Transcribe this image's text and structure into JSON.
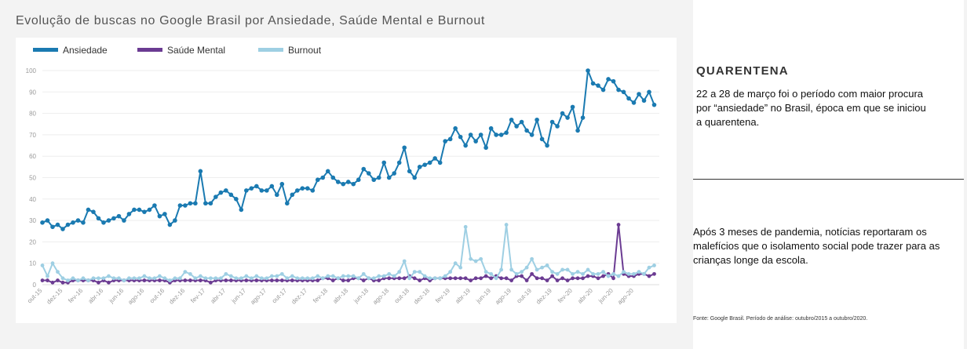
{
  "title": "Evolução de buscas no Google Brasil por Ansiedade, Saúde Mental e Burnout",
  "panel": {
    "heading": "QUARENTENA",
    "text1": "22 a 28 de março foi o período com maior procura por “ansiedade” no Brasil, época em que se iniciou a quarentena.",
    "text2": "Após 3 meses de pandemia, notícias reportaram os malefícios que o isolamento social pode trazer para as crianças longe da escola.",
    "source": "Fonte: Google Brasil. Período de análise: outubro/2015 a outubro/2020."
  },
  "chart_data": {
    "type": "line",
    "ylim": [
      0,
      100
    ],
    "yticks": [
      0,
      10,
      20,
      30,
      40,
      50,
      60,
      70,
      80,
      90,
      100
    ],
    "xlim": [
      0,
      60.5
    ],
    "xtick_labels": [
      "out-15",
      "dez-15",
      "fev-16",
      "abr-16",
      "jun-16",
      "ago-16",
      "out-16",
      "dez-16",
      "fev-17",
      "abr-17",
      "jun-17",
      "ago-17",
      "out-17",
      "dez-17",
      "fev-18",
      "abr-18",
      "jun-18",
      "ago-18",
      "out-18",
      "dez-18",
      "fev-19",
      "abr-19",
      "jun-19",
      "ago-19",
      "out-19",
      "dez-19",
      "fev-20",
      "abr-20",
      "jun-20",
      "ago-20"
    ],
    "xtick_positions": [
      0,
      2,
      4,
      6,
      8,
      10,
      12,
      14,
      16,
      18,
      20,
      22,
      24,
      26,
      28,
      30,
      32,
      34,
      36,
      38,
      40,
      42,
      44,
      46,
      48,
      50,
      52,
      54,
      56,
      58
    ],
    "legend_position": "top-left",
    "series": [
      {
        "name": "Ansiedade",
        "color": "#1a7ab1",
        "x": [
          0,
          0.5,
          1,
          1.5,
          2,
          2.5,
          3,
          3.5,
          4,
          4.5,
          5,
          5.5,
          6,
          6.5,
          7,
          7.5,
          8,
          8.5,
          9,
          9.5,
          10,
          10.5,
          11,
          11.5,
          12,
          12.5,
          13,
          13.5,
          14,
          14.5,
          15,
          15.5,
          16,
          16.5,
          17,
          17.5,
          18,
          18.5,
          19,
          19.5,
          20,
          20.5,
          21,
          21.5,
          22,
          22.5,
          23,
          23.5,
          24,
          24.5,
          25,
          25.5,
          26,
          26.5,
          27,
          27.5,
          28,
          28.5,
          29,
          29.5,
          30,
          30.5,
          31,
          31.5,
          32,
          32.5,
          33,
          33.5,
          34,
          34.5,
          35,
          35.5,
          36,
          36.5,
          37,
          37.5,
          38,
          38.5,
          39,
          39.5,
          40,
          40.5,
          41,
          41.5,
          42,
          42.5,
          43,
          43.5,
          44,
          44.5,
          45,
          45.5,
          46,
          46.5,
          47,
          47.5,
          48,
          48.5,
          49,
          49.5,
          50,
          50.5,
          51,
          51.5,
          52,
          52.5,
          53,
          53.5,
          54,
          54.5,
          55,
          55.5,
          56,
          56.5,
          57,
          57.5,
          58,
          58.5,
          59,
          59.5,
          60
        ],
        "values": [
          29,
          30,
          27,
          28,
          26,
          28,
          29,
          30,
          29,
          35,
          34,
          31,
          29,
          30,
          31,
          32,
          30,
          33,
          35,
          35,
          34,
          35,
          37,
          32,
          33,
          28,
          30,
          37,
          37,
          38,
          38,
          53,
          38,
          38,
          41,
          43,
          44,
          42,
          40,
          35,
          44,
          45,
          46,
          44,
          44,
          46,
          42,
          47,
          38,
          42,
          44,
          45,
          45,
          44,
          49,
          50,
          53,
          50,
          48,
          47,
          48,
          47,
          49,
          54,
          52,
          49,
          50,
          57,
          50,
          52,
          57,
          64,
          53,
          50,
          55,
          56,
          57,
          59,
          57,
          67,
          68,
          73,
          69,
          65,
          70,
          67,
          70,
          64,
          73,
          70,
          70,
          71,
          77,
          74,
          76,
          72,
          70,
          77,
          68,
          65,
          76,
          74,
          80,
          78,
          83,
          72,
          78,
          100,
          94,
          93,
          91,
          96,
          95,
          91,
          90,
          87,
          85,
          89,
          86,
          90,
          84
        ],
        "marker_size": 2.8
      },
      {
        "name": "Saúde Mental",
        "color": "#6b3b92",
        "x": [
          0,
          0.5,
          1,
          1.5,
          2,
          2.5,
          3,
          3.5,
          4,
          4.5,
          5,
          5.5,
          6,
          6.5,
          7,
          7.5,
          8,
          8.5,
          9,
          9.5,
          10,
          10.5,
          11,
          11.5,
          12,
          12.5,
          13,
          13.5,
          14,
          14.5,
          15,
          15.5,
          16,
          16.5,
          17,
          17.5,
          18,
          18.5,
          19,
          19.5,
          20,
          20.5,
          21,
          21.5,
          22,
          22.5,
          23,
          23.5,
          24,
          24.5,
          25,
          25.5,
          26,
          26.5,
          27,
          27.5,
          28,
          28.5,
          29,
          29.5,
          30,
          30.5,
          31,
          31.5,
          32,
          32.5,
          33,
          33.5,
          34,
          34.5,
          35,
          35.5,
          36,
          36.5,
          37,
          37.5,
          38,
          38.5,
          39,
          39.5,
          40,
          40.5,
          41,
          41.5,
          42,
          42.5,
          43,
          43.5,
          44,
          44.5,
          45,
          45.5,
          46,
          46.5,
          47,
          47.5,
          48,
          48.5,
          49,
          49.5,
          50,
          50.5,
          51,
          51.5,
          52,
          52.5,
          53,
          53.5,
          54,
          54.5,
          55,
          55.5,
          56,
          56.5,
          57,
          57.5,
          58,
          58.5,
          59,
          59.5,
          60
        ],
        "values": [
          2,
          2,
          1,
          2,
          1,
          1,
          2,
          2,
          2,
          2,
          2,
          1,
          2,
          1,
          2,
          2,
          2,
          2,
          2,
          2,
          2,
          2,
          2,
          2,
          2,
          1,
          2,
          2,
          2,
          2,
          2,
          2,
          2,
          1,
          2,
          2,
          2,
          2,
          2,
          2,
          2,
          2,
          2,
          2,
          2,
          2,
          2,
          2,
          2,
          2,
          2,
          2,
          2,
          2,
          2,
          3,
          3,
          2,
          3,
          2,
          2,
          3,
          3,
          2,
          3,
          2,
          2,
          3,
          3,
          3,
          3,
          3,
          4,
          3,
          2,
          3,
          2,
          3,
          3,
          3,
          3,
          3,
          3,
          3,
          2,
          3,
          3,
          4,
          3,
          4,
          3,
          3,
          2,
          4,
          4,
          2,
          5,
          3,
          3,
          2,
          4,
          2,
          3,
          2,
          3,
          3,
          3,
          4,
          4,
          3,
          4,
          5,
          3,
          28,
          5,
          4,
          4,
          5,
          5,
          4,
          5
        ],
        "marker_size": 2.4
      },
      {
        "name": "Burnout",
        "color": "#9ecfe3",
        "x": [
          0,
          0.5,
          1,
          1.5,
          2,
          2.5,
          3,
          3.5,
          4,
          4.5,
          5,
          5.5,
          6,
          6.5,
          7,
          7.5,
          8,
          8.5,
          9,
          9.5,
          10,
          10.5,
          11,
          11.5,
          12,
          12.5,
          13,
          13.5,
          14,
          14.5,
          15,
          15.5,
          16,
          16.5,
          17,
          17.5,
          18,
          18.5,
          19,
          19.5,
          20,
          20.5,
          21,
          21.5,
          22,
          22.5,
          23,
          23.5,
          24,
          24.5,
          25,
          25.5,
          26,
          26.5,
          27,
          27.5,
          28,
          28.5,
          29,
          29.5,
          30,
          30.5,
          31,
          31.5,
          32,
          32.5,
          33,
          33.5,
          34,
          34.5,
          35,
          35.5,
          36,
          36.5,
          37,
          37.5,
          38,
          38.5,
          39,
          39.5,
          40,
          40.5,
          41,
          41.5,
          42,
          42.5,
          43,
          43.5,
          44,
          44.5,
          45,
          45.5,
          46,
          46.5,
          47,
          47.5,
          48,
          48.5,
          49,
          49.5,
          50,
          50.5,
          51,
          51.5,
          52,
          52.5,
          53,
          53.5,
          54,
          54.5,
          55,
          55.5,
          56,
          56.5,
          57,
          57.5,
          58,
          58.5,
          59,
          59.5,
          60
        ],
        "values": [
          9,
          4,
          10,
          6,
          3,
          2,
          3,
          2,
          3,
          2,
          3,
          3,
          3,
          4,
          3,
          3,
          2,
          3,
          3,
          3,
          4,
          3,
          3,
          4,
          3,
          2,
          3,
          3,
          6,
          5,
          3,
          4,
          3,
          3,
          3,
          3,
          5,
          4,
          3,
          3,
          4,
          3,
          4,
          3,
          3,
          4,
          4,
          5,
          3,
          4,
          3,
          3,
          3,
          3,
          4,
          3,
          4,
          4,
          3,
          4,
          4,
          4,
          3,
          5,
          3,
          3,
          4,
          4,
          5,
          4,
          6,
          11,
          3,
          6,
          6,
          4,
          3,
          3,
          3,
          4,
          6,
          10,
          8,
          27,
          12,
          11,
          12,
          6,
          5,
          3,
          7,
          28,
          7,
          5,
          6,
          8,
          12,
          7,
          8,
          9,
          6,
          5,
          7,
          7,
          5,
          6,
          5,
          7,
          5,
          5,
          6,
          4,
          5,
          4,
          6,
          5,
          5,
          6,
          5,
          8,
          9
        ],
        "marker_size": 2.4
      }
    ]
  }
}
